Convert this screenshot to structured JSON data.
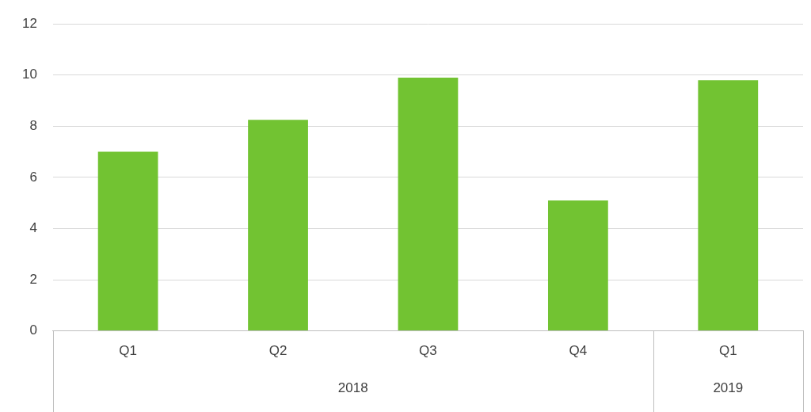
{
  "chart_data": {
    "type": "bar",
    "categories": [
      "Q1",
      "Q2",
      "Q3",
      "Q4",
      "Q1"
    ],
    "category_groups": [
      {
        "label": "2018",
        "count": 4
      },
      {
        "label": "2019",
        "count": 1
      }
    ],
    "values": [
      7.0,
      8.25,
      9.9,
      5.1,
      9.8
    ],
    "color": "#72c332",
    "ylim": [
      0,
      12
    ],
    "yticks": [
      0,
      2,
      4,
      6,
      8,
      10,
      12
    ],
    "grid": true
  }
}
